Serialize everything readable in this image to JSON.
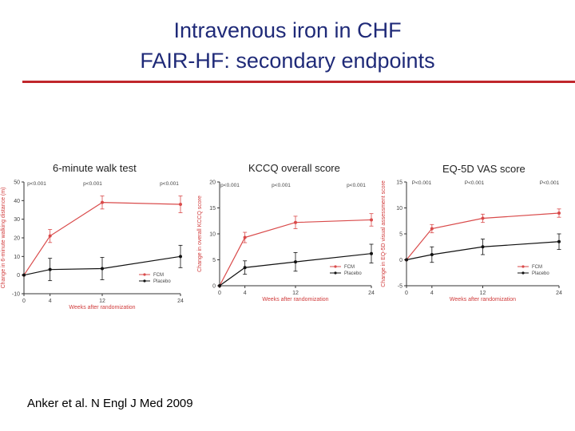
{
  "slide": {
    "title_line1": "Intravenous iron in CHF",
    "title_line2": "FAIR-HF: secondary endpoints",
    "citation": "Anker et al. N Engl J Med 2009"
  },
  "colors": {
    "fcm": "#d94a4a",
    "placebo": "#111111",
    "rule": "#c0262c",
    "title": "#1f2a78"
  },
  "chart_data": [
    {
      "type": "line",
      "title": "6-minute walk test",
      "xlabel": "Weeks after randomization",
      "ylabel": "Change in 6-minute walking distance (m)",
      "x": [
        0,
        4,
        12,
        24
      ],
      "xticks": [
        0,
        4,
        12,
        24
      ],
      "ylim": [
        -10,
        50
      ],
      "yticks": [
        -10,
        0,
        10,
        20,
        30,
        40,
        50
      ],
      "pvalues": [
        "p<0.001",
        "p<0.001",
        "p<0.001"
      ],
      "series": [
        {
          "name": "FCM",
          "values": [
            0,
            21,
            39,
            38
          ],
          "err": [
            0,
            3.5,
            3.5,
            4.5
          ],
          "color": "#d94a4a"
        },
        {
          "name": "Placebo",
          "values": [
            0,
            3,
            3.5,
            10
          ],
          "err": [
            0,
            6,
            6,
            6
          ],
          "color": "#111111"
        }
      ]
    },
    {
      "type": "line",
      "title": "KCCQ overall score",
      "xlabel": "Weeks after randomization",
      "ylabel": "Change in overall KCCQ score",
      "x": [
        0,
        4,
        12,
        24
      ],
      "xticks": [
        0,
        4,
        12,
        24
      ],
      "ylim": [
        0,
        20
      ],
      "yticks": [
        0,
        5,
        10,
        15,
        20
      ],
      "pvalues": [
        "p<0.001",
        "p<0.001",
        "p<0.001"
      ],
      "series": [
        {
          "name": "FCM",
          "values": [
            0,
            9.3,
            12.2,
            12.7
          ],
          "err": [
            0,
            1,
            1.2,
            1.2
          ],
          "color": "#d94a4a"
        },
        {
          "name": "Placebo",
          "values": [
            0,
            3.5,
            4.6,
            6.2
          ],
          "err": [
            0,
            1.3,
            1.8,
            1.8
          ],
          "color": "#111111"
        }
      ]
    },
    {
      "type": "line",
      "title": "EQ-5D VAS score",
      "xlabel": "Weeks after randomization",
      "ylabel": "Change in EQ-5D visual assessment score",
      "x": [
        0,
        4,
        12,
        24
      ],
      "xticks": [
        0,
        4,
        12,
        24
      ],
      "ylim": [
        -5,
        15
      ],
      "yticks": [
        -5,
        0,
        5,
        10,
        15
      ],
      "pvalues": [
        "P<0.001",
        "P<0.001",
        "P<0.001"
      ],
      "series": [
        {
          "name": "FCM",
          "values": [
            0,
            6,
            8,
            9
          ],
          "err": [
            0,
            0.8,
            0.8,
            0.8
          ],
          "color": "#d94a4a"
        },
        {
          "name": "Placebo",
          "values": [
            0,
            1,
            2.5,
            3.5
          ],
          "err": [
            0,
            1.5,
            1.5,
            1.5
          ],
          "color": "#111111"
        }
      ]
    }
  ]
}
